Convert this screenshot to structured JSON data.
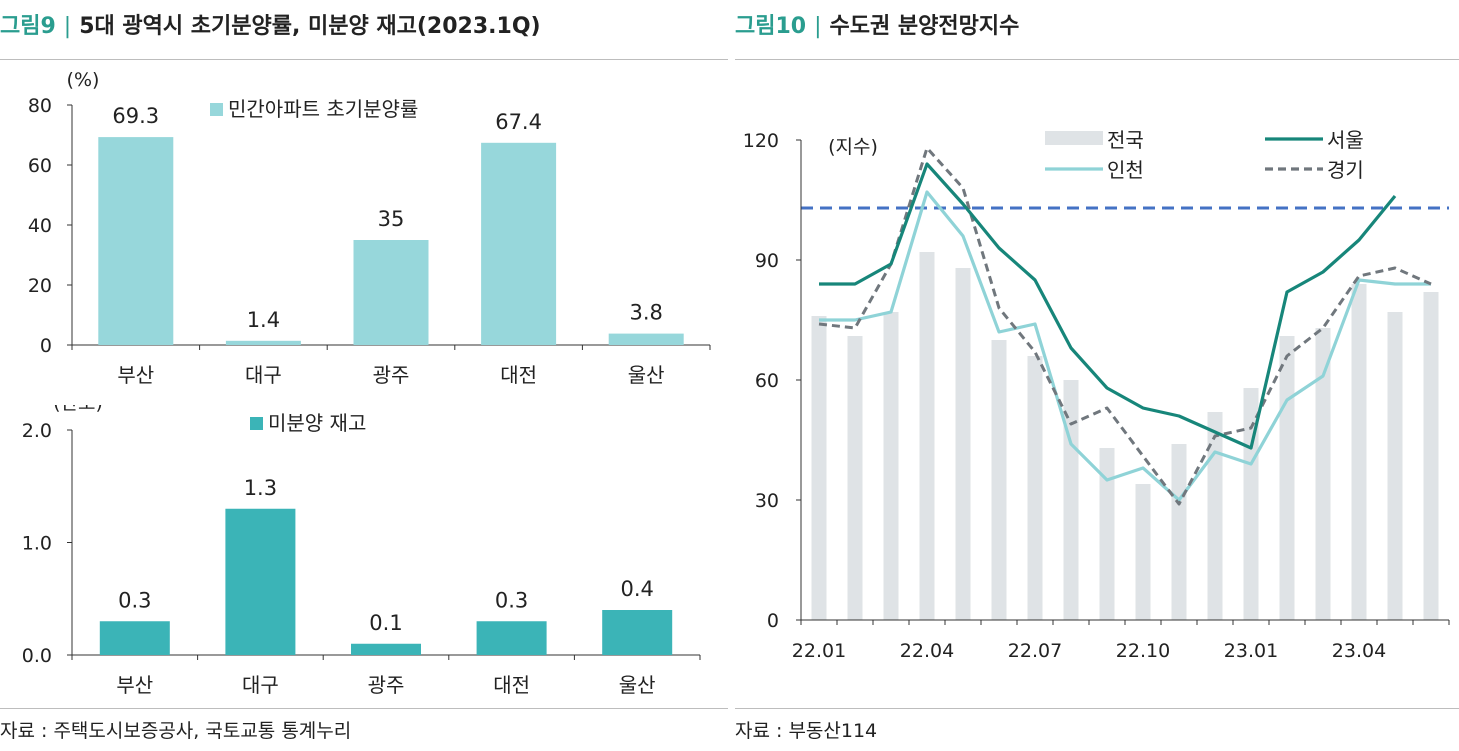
{
  "left": {
    "fig_num": "그림9",
    "sep": "|",
    "title": "5대 광역시 초기분양률, 미분양 재고(2023.1Q)",
    "source": "자료 : 주택도시보증공사, 국토교통 통계누리"
  },
  "right": {
    "fig_num": "그림10",
    "sep": "|",
    "title": "수도권 분양전망지수",
    "source": "자료 : 부동산114"
  },
  "colors": {
    "bar_light": "#97d7db",
    "bar_dark": "#3bb4b7",
    "national": "#dfe3e6",
    "seoul": "#17867a",
    "incheon": "#8fd3d7",
    "gyeonggi": "#70777d",
    "ref_line": "#4472c4"
  },
  "chart_data": [
    {
      "type": "bar",
      "unit": "(%)",
      "categories": [
        "부산",
        "대구",
        "광주",
        "대전",
        "울산"
      ],
      "series": [
        {
          "name": "민간아파트 초기분양률",
          "values": [
            69.3,
            1.4,
            35,
            67.4,
            3.8
          ]
        }
      ],
      "value_labels": [
        "69.3",
        "1.4",
        "35",
        "67.4",
        "3.8"
      ],
      "ylim": [
        0,
        80
      ],
      "yticks": [
        "0",
        "20",
        "40",
        "60",
        "80"
      ],
      "legend": "top-center"
    },
    {
      "type": "bar",
      "unit": "(만호)",
      "categories": [
        "부산",
        "대구",
        "광주",
        "대전",
        "울산"
      ],
      "series": [
        {
          "name": "미분양 재고",
          "values": [
            0.3,
            1.3,
            0.1,
            0.3,
            0.4
          ]
        }
      ],
      "value_labels": [
        "0.3",
        "1.3",
        "0.1",
        "0.3",
        "0.4"
      ],
      "ylim": [
        0,
        2
      ],
      "yticks": [
        "0.0",
        "1.0",
        "2.0"
      ],
      "legend": "top-center"
    },
    {
      "type": "line",
      "unit": "(지수)",
      "x": [
        "22.01",
        "22.02",
        "22.03",
        "22.04",
        "22.05",
        "22.06",
        "22.07",
        "22.08",
        "22.09",
        "22.10",
        "22.11",
        "22.12",
        "23.01",
        "23.02",
        "23.03",
        "23.04",
        "23.05",
        "23.06"
      ],
      "xtick_labels": [
        "22.01",
        "22.04",
        "22.07",
        "22.10",
        "23.01",
        "23.04"
      ],
      "ylim": [
        0,
        120
      ],
      "yticks": [
        "0",
        "30",
        "60",
        "90",
        "120"
      ],
      "reference_line": 103,
      "series": [
        {
          "name": "전국",
          "type": "bar",
          "values": [
            76,
            71,
            77,
            92,
            88,
            70,
            66,
            60,
            43,
            34,
            44,
            52,
            58,
            71,
            73,
            84,
            77,
            82
          ]
        },
        {
          "name": "서울",
          "type": "line",
          "values": [
            84,
            84,
            89,
            114,
            104,
            93,
            85,
            68,
            58,
            53,
            51,
            47,
            43,
            82,
            87,
            95,
            106,
            null
          ]
        },
        {
          "name": "인천",
          "type": "line",
          "values": [
            75,
            75,
            77,
            107,
            96,
            72,
            74,
            44,
            35,
            38,
            30,
            42,
            39,
            55,
            61,
            85,
            84,
            84
          ]
        },
        {
          "name": "경기",
          "type": "line",
          "values": [
            74,
            73,
            89,
            118,
            108,
            78,
            67,
            49,
            53,
            41,
            29,
            46,
            48,
            66,
            73,
            86,
            88,
            84
          ]
        }
      ],
      "legend": "top-right"
    }
  ]
}
